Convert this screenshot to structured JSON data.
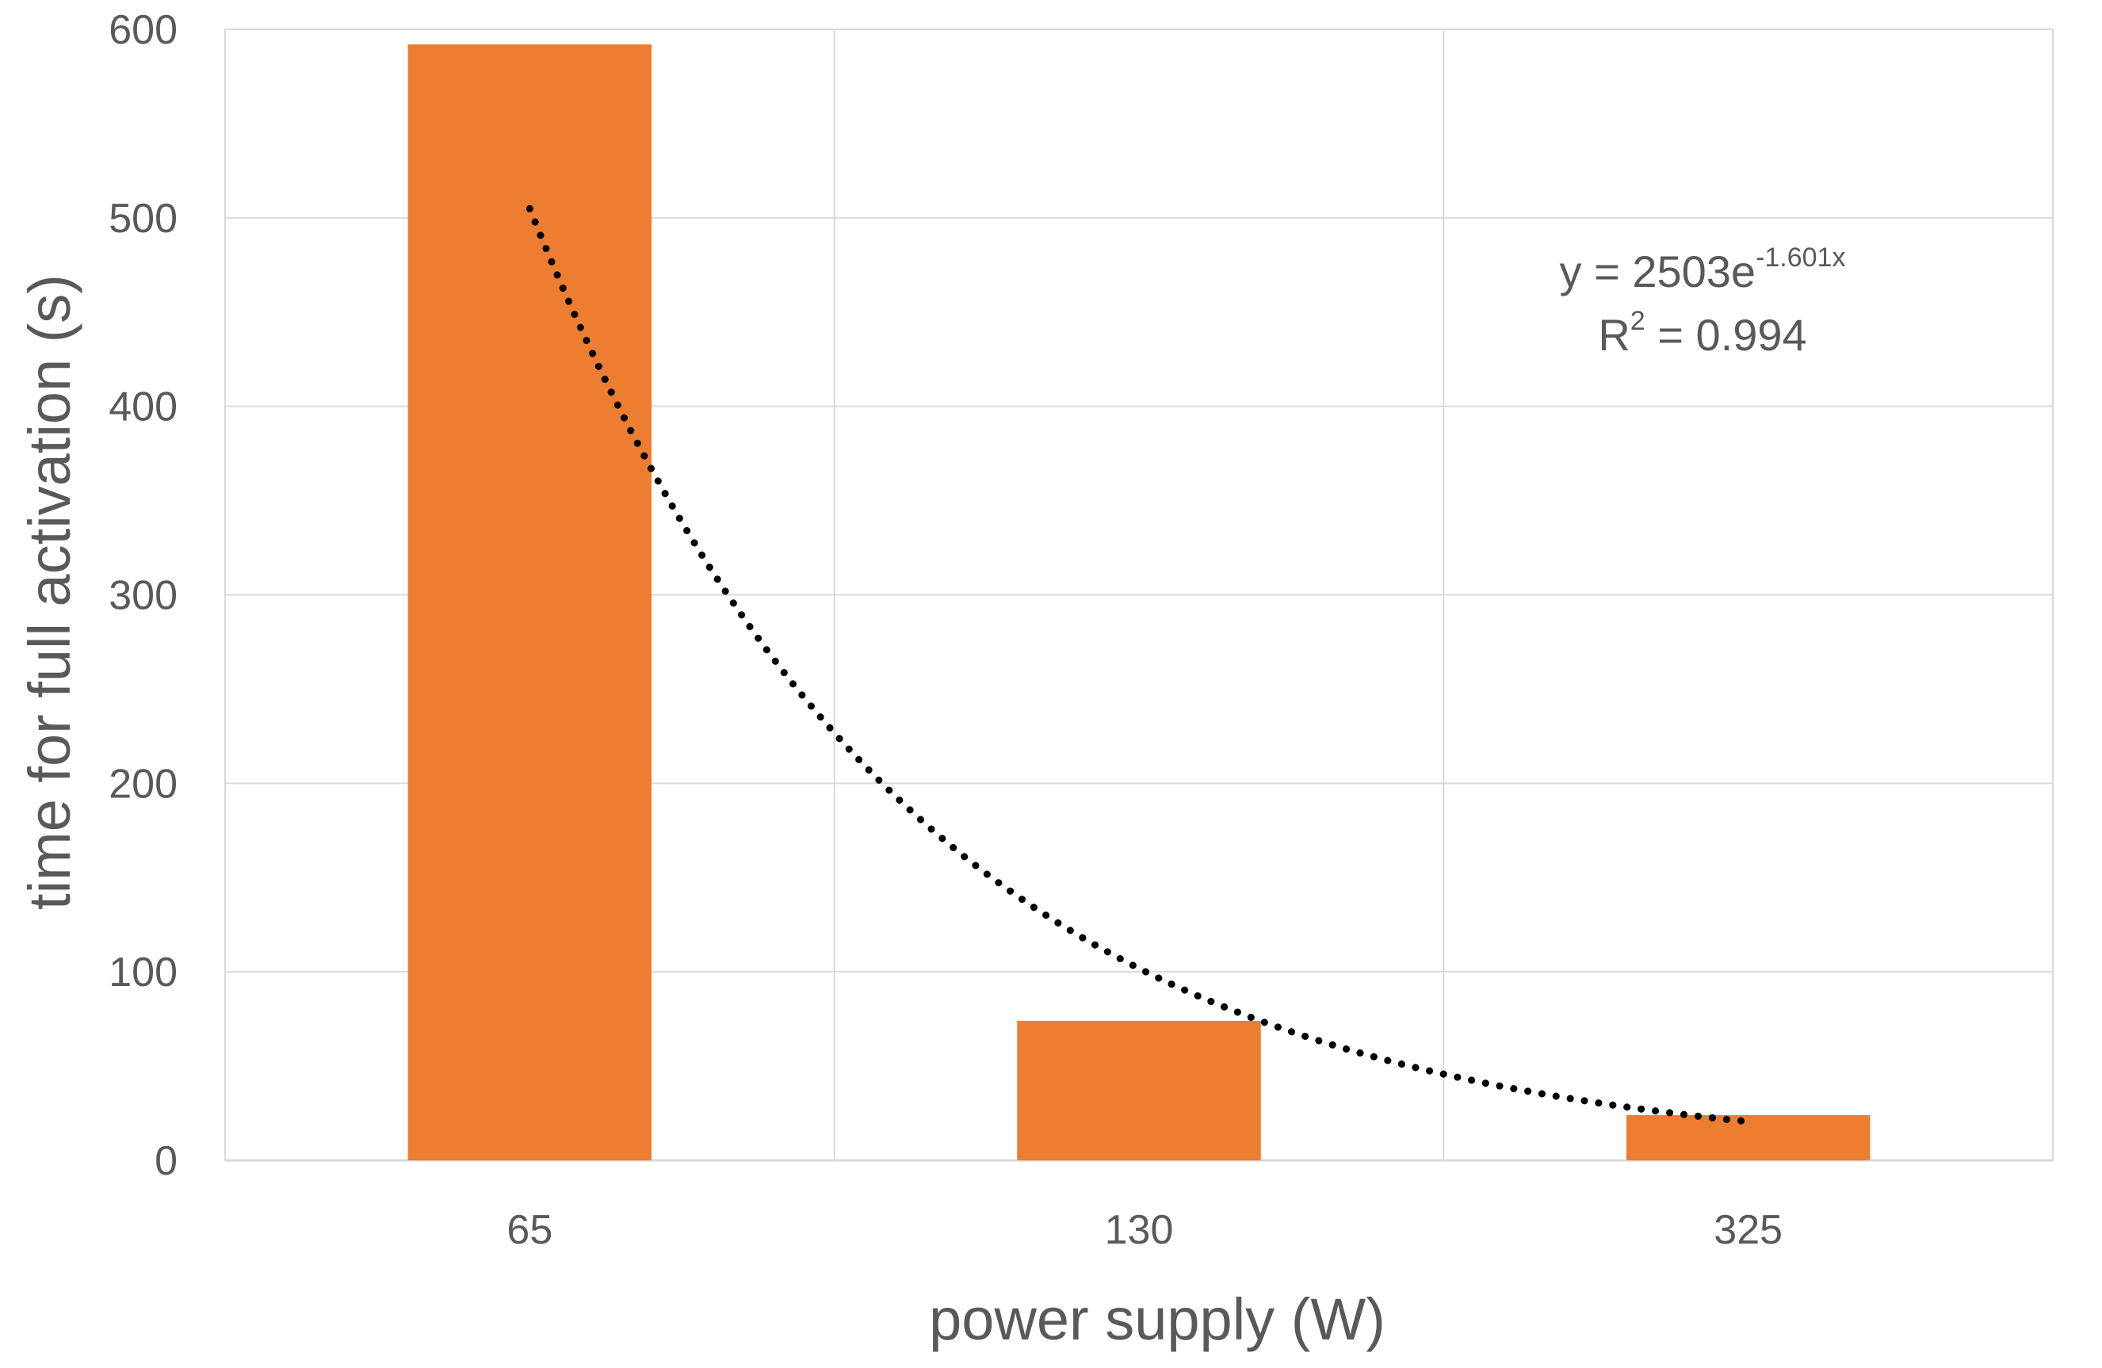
{
  "chart_data": {
    "type": "bar",
    "categories": [
      "65",
      "130",
      "325"
    ],
    "values": [
      592,
      74,
      24
    ],
    "xlabel": "power supply (W)",
    "ylabel": "time for  full activation (s)",
    "ylim": [
      0,
      600
    ],
    "yticks": [
      "0",
      "100",
      "200",
      "300",
      "400",
      "500",
      "600"
    ],
    "grid": true,
    "bar_color": "#ED7D31",
    "trendline": {
      "type": "exponential",
      "style": "dotted",
      "color": "#000000",
      "a": 2503,
      "b": -1.601,
      "equation_text": {
        "prefix": "y = 2503e",
        "exponent": "-1.601x"
      },
      "r2_text": {
        "prefix": "R",
        "exponent": "2",
        "suffix": " = 0.994"
      }
    }
  }
}
